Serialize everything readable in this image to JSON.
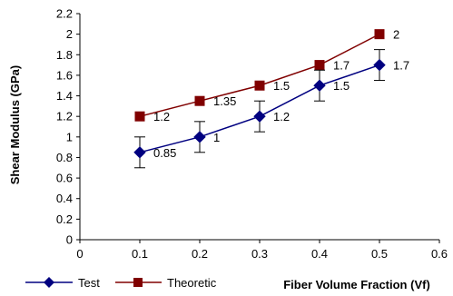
{
  "chart_data": {
    "type": "line",
    "title": "",
    "xlabel": "Fiber Volume Fraction (Vf)",
    "ylabel": "Shear Modulus (GPa)",
    "xlim": [
      0,
      0.6
    ],
    "ylim": [
      0,
      2.2
    ],
    "x_ticks": [
      "0",
      "0.1",
      "0.2",
      "0.3",
      "0.4",
      "0.5",
      "0.6"
    ],
    "y_ticks": [
      "0",
      "0.2",
      "0.4",
      "0.6",
      "0.8",
      "1",
      "1.2",
      "1.4",
      "1.6",
      "1.8",
      "2",
      "2.2"
    ],
    "grid": false,
    "legend_position": "bottom-left",
    "series": [
      {
        "name": "Test",
        "color": "#000080",
        "marker": "diamond",
        "x": [
          0.1,
          0.2,
          0.3,
          0.4,
          0.5
        ],
        "y": [
          0.85,
          1.0,
          1.2,
          1.5,
          1.7
        ],
        "error": [
          0.15,
          0.15,
          0.15,
          0.15,
          0.15
        ],
        "labels": [
          "0.85",
          "1",
          "1.2",
          "1.5",
          "1.7"
        ]
      },
      {
        "name": "Theoretic",
        "color": "#800000",
        "marker": "square",
        "x": [
          0.1,
          0.2,
          0.3,
          0.4,
          0.5
        ],
        "y": [
          1.2,
          1.35,
          1.5,
          1.7,
          2.0
        ],
        "labels": [
          "1.2",
          "1.35",
          "1.5",
          "1.7",
          "2"
        ]
      }
    ]
  }
}
